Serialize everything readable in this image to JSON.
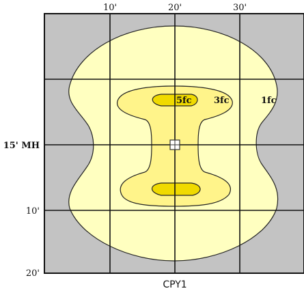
{
  "top_axis": {
    "ticks": [
      "10'",
      "20'",
      "30'"
    ]
  },
  "left_axis": {
    "mount_height": "15' MH",
    "tick_10": "10'",
    "tick_20": "20'"
  },
  "contours": {
    "inner": "5fc",
    "middle": "3fc",
    "outer": "1fc"
  },
  "caption": "CPY1",
  "colors": {
    "background_grid": "#c3c3c3",
    "grid_line": "#111111",
    "contour_1fc": "#ffffc0",
    "contour_3fc": "#fff48a",
    "contour_5fc": "#f0da00"
  },
  "luminaire_icon": "square-fixture-icon"
}
